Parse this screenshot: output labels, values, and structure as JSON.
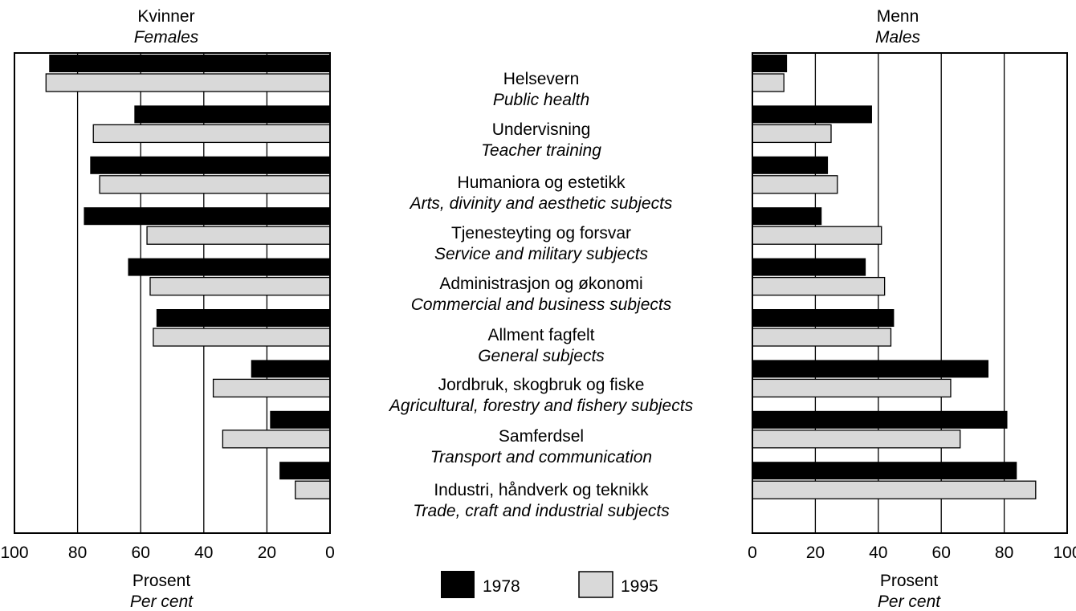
{
  "colors": {
    "y1978": "#000000",
    "y1995": "#d9d9d9",
    "frame": "#000000"
  },
  "female_panel": {
    "title": "Kvinner",
    "subtitle": "Females",
    "xlabel": "Prosent",
    "xlabel_en": "Per cent"
  },
  "male_panel": {
    "title": "Menn",
    "subtitle": "Males",
    "xlabel": "Prosent",
    "xlabel_en": "Per cent"
  },
  "legend": [
    {
      "label": "1978"
    },
    {
      "label": "1995"
    }
  ],
  "chart_data": [
    {
      "type": "bar",
      "orientation": "horizontal",
      "panel": "female",
      "title": "Kvinner",
      "subtitle": "Females",
      "xlabel": "Prosent",
      "xlabel_en": "Per cent",
      "xlim": [
        100,
        0
      ],
      "ticks": [
        "100",
        "80",
        "60",
        "40",
        "20",
        "0"
      ],
      "grid": true,
      "categories": [
        {
          "no": "Helsevern",
          "en": "Public health"
        },
        {
          "no": "Undervisning",
          "en": "Teacher training"
        },
        {
          "no": "Humaniora og estetikk",
          "en": "Arts, divinity and aesthetic subjects"
        },
        {
          "no": "Tjenesteyting og forsvar",
          "en": "Service and military subjects"
        },
        {
          "no": "Administrasjon og økonomi",
          "en": "Commercial and business subjects"
        },
        {
          "no": "Allment fagfelt",
          "en": "General subjects"
        },
        {
          "no": "Jordbruk, skogbruk og fiske",
          "en": "Agricultural, forestry and fishery subjects"
        },
        {
          "no": "Samferdsel",
          "en": "Transport and communication"
        },
        {
          "no": "Industri, håndverk og teknikk",
          "en": "Trade, craft and industrial subjects"
        }
      ],
      "series": [
        {
          "name": "1978",
          "values": [
            89,
            62,
            76,
            78,
            64,
            55,
            25,
            19,
            16
          ]
        },
        {
          "name": "1995",
          "values": [
            90,
            75,
            73,
            58,
            57,
            56,
            37,
            34,
            11
          ]
        }
      ]
    },
    {
      "type": "bar",
      "orientation": "horizontal",
      "panel": "male",
      "title": "Menn",
      "subtitle": "Males",
      "xlabel": "Prosent",
      "xlabel_en": "Per cent",
      "xlim": [
        0,
        100
      ],
      "ticks": [
        "0",
        "20",
        "40",
        "60",
        "80",
        "100"
      ],
      "grid": true,
      "categories": [
        {
          "no": "Helsevern",
          "en": "Public health"
        },
        {
          "no": "Undervisning",
          "en": "Teacher training"
        },
        {
          "no": "Humaniora og estetikk",
          "en": "Arts, divinity and aesthetic subjects"
        },
        {
          "no": "Tjenesteyting og forsvar",
          "en": "Service and military subjects"
        },
        {
          "no": "Administrasjon og økonomi",
          "en": "Commercial and business subjects"
        },
        {
          "no": "Allment fagfelt",
          "en": "General subjects"
        },
        {
          "no": "Jordbruk, skogbruk og fiske",
          "en": "Agricultural, forestry and fishery subjects"
        },
        {
          "no": "Samferdsel",
          "en": "Transport and communication"
        },
        {
          "no": "Industri, håndverk og teknikk",
          "en": "Trade, craft and industrial subjects"
        }
      ],
      "series": [
        {
          "name": "1978",
          "values": [
            11,
            38,
            24,
            22,
            36,
            45,
            75,
            81,
            84
          ]
        },
        {
          "name": "1995",
          "values": [
            10,
            25,
            27,
            41,
            42,
            44,
            63,
            66,
            90
          ]
        }
      ]
    }
  ]
}
